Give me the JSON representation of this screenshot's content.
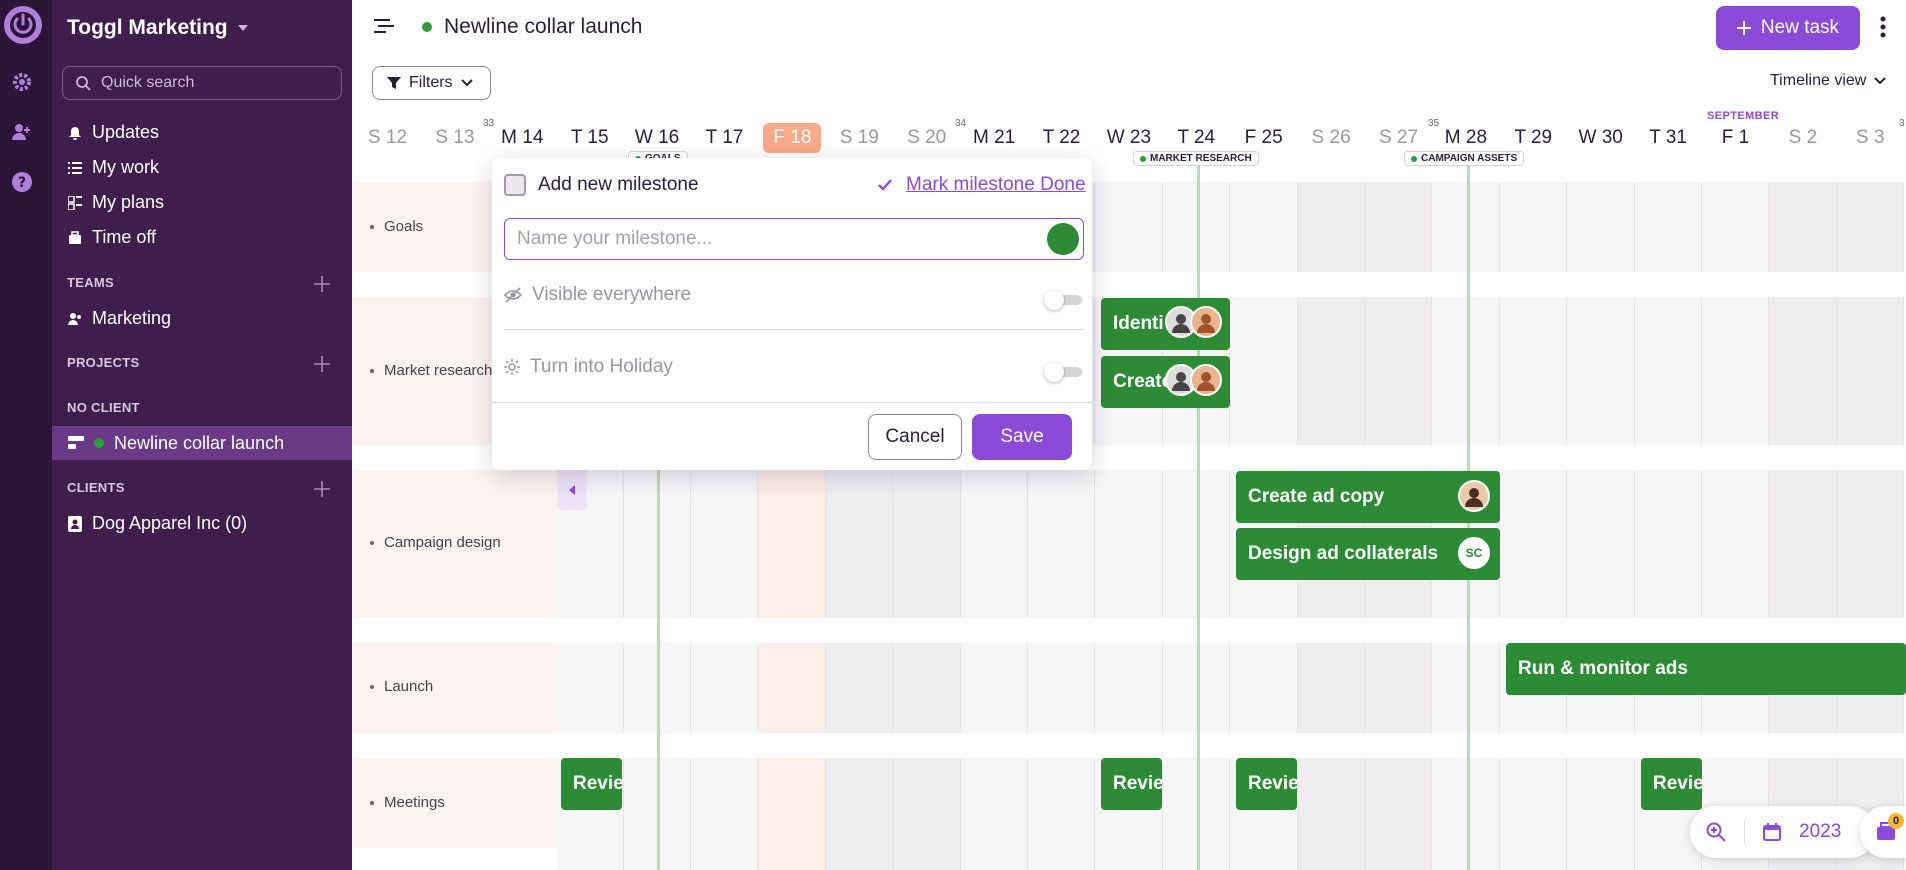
{
  "workspace": {
    "name": "Toggl Marketing"
  },
  "sidebar": {
    "search_placeholder": "Quick search",
    "nav": [
      {
        "label": "Updates",
        "icon": "bell-icon"
      },
      {
        "label": "My work",
        "icon": "list-icon"
      },
      {
        "label": "My plans",
        "icon": "plans-icon"
      },
      {
        "label": "Time off",
        "icon": "suitcase-icon"
      }
    ],
    "teams_heading": "TEAMS",
    "teams": [
      "Marketing"
    ],
    "projects_heading": "PROJECTS",
    "no_client_heading": "NO CLIENT",
    "active_project": "Newline collar launch",
    "clients_heading": "CLIENTS",
    "clients": [
      "Dog Apparel Inc (0)"
    ]
  },
  "header": {
    "project_title": "Newline collar launch",
    "new_task_label": "New task",
    "filters_label": "Filters",
    "view_label": "Timeline view"
  },
  "timeline": {
    "days": [
      "S 12",
      "S 13",
      "M 14",
      "T 15",
      "W 16",
      "T 17",
      "F 18",
      "S 19",
      "S 20",
      "M 21",
      "T 22",
      "W 23",
      "T 24",
      "F 25",
      "S 26",
      "S 27",
      "M 28",
      "T 29",
      "W 30",
      "T 31",
      "F 1",
      "S 2",
      "S 3"
    ],
    "weekend_indices": [
      0,
      1,
      7,
      8,
      14,
      15,
      21,
      22
    ],
    "today_index": 6,
    "week_numbers": [
      "33",
      "34",
      "35",
      "3"
    ],
    "month_label": "SEPTEMBER",
    "milestones": [
      "GOALS",
      "MARKET RESEARCH",
      "CAMPAIGN ASSETS"
    ],
    "rows": [
      "Goals",
      "Market research",
      "Campaign design",
      "Launch",
      "Meetings"
    ],
    "tasks": {
      "identify": "Identi",
      "create": "Create",
      "create_ad_copy": "Create ad copy",
      "design_ad_collaterals": "Design ad collaterals",
      "run_monitor": "Run & monitor ads",
      "review": "Revie"
    },
    "avatar_initials": "SC"
  },
  "milestone_popup": {
    "title": "Add new milestone",
    "mark_done": "Mark milestone Done",
    "name_placeholder": "Name your milestone...",
    "visible_label": "Visible everywhere",
    "holiday_label": "Turn into Holiday",
    "cancel_label": "Cancel",
    "save_label": "Save"
  },
  "footer": {
    "year": "2023",
    "inbox_count": "0"
  },
  "colors": {
    "accent": "#8c4ad9",
    "task_green": "#2e8b35",
    "sidebar": "#3f1d4d",
    "today": "#f7a98a"
  }
}
